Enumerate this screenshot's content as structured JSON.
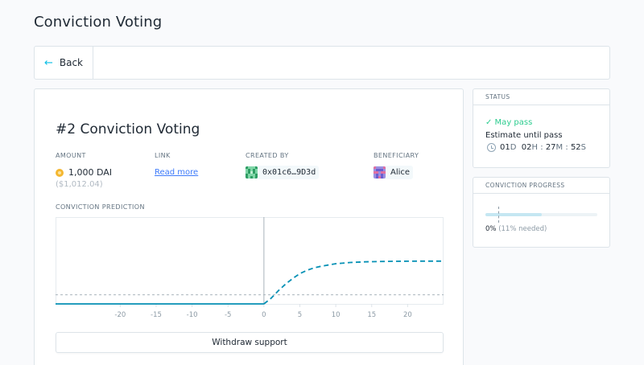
{
  "page": {
    "title": "Conviction Voting"
  },
  "nav": {
    "back_label": "Back",
    "back_icon": "arrow-left-icon"
  },
  "proposal": {
    "title": "#2 Conviction Voting",
    "amount_label": "AMOUNT",
    "amount": "1,000 DAI",
    "amount_usd": "($1,012.04)",
    "link_label": "LINK",
    "link_text": "Read more",
    "created_by_label": "CREATED BY",
    "created_by": "0x01c6…9D3d",
    "beneficiary_label": "BENEFICIARY",
    "beneficiary": "Alice"
  },
  "chart_title": "CONVICTION PREDICTION",
  "withdraw_label": "Withdraw support",
  "status": {
    "heading": "STATUS",
    "state": "✓ May pass",
    "subtitle": "Estimate until pass",
    "days": "01",
    "days_unit": "D",
    "hours": "02",
    "hours_unit": "H",
    "minutes": "27",
    "minutes_unit": "M",
    "seconds": "52",
    "seconds_unit": "S"
  },
  "progress": {
    "heading": "CONVICTION PROGRESS",
    "current_label": "0%",
    "needed_label": "(11% needed)",
    "needed_fraction": 0.11,
    "fill_fraction": 0.5
  },
  "colors": {
    "accent": "#08bee5",
    "success": "#2ccc8f",
    "line": "#0791b5",
    "threshold": "#8c9aa5",
    "vertical": "#a9b3bb",
    "dai": "#f4b731"
  },
  "chart_data": {
    "type": "line",
    "title": "",
    "xlabel": "",
    "ylabel": "",
    "xlim": [
      -29,
      25
    ],
    "ylim": [
      0,
      1
    ],
    "x_ticks": [
      -20,
      -15,
      -10,
      -5,
      0,
      5,
      10,
      15,
      20
    ],
    "threshold": 0.11,
    "now_x": 0,
    "series": [
      {
        "style": "solid",
        "x": [
          -29,
          -20,
          -10,
          0
        ],
        "y": [
          0.0,
          0.0,
          0.0,
          0.0
        ]
      },
      {
        "style": "dashed",
        "x": [
          0,
          1,
          2,
          3,
          4,
          5,
          6,
          7,
          8,
          10,
          12,
          14,
          16,
          18,
          20,
          22,
          25
        ],
        "y": [
          0.0,
          0.07,
          0.16,
          0.24,
          0.31,
          0.37,
          0.41,
          0.44,
          0.46,
          0.49,
          0.505,
          0.513,
          0.517,
          0.52,
          0.521,
          0.522,
          0.522
        ]
      }
    ]
  }
}
